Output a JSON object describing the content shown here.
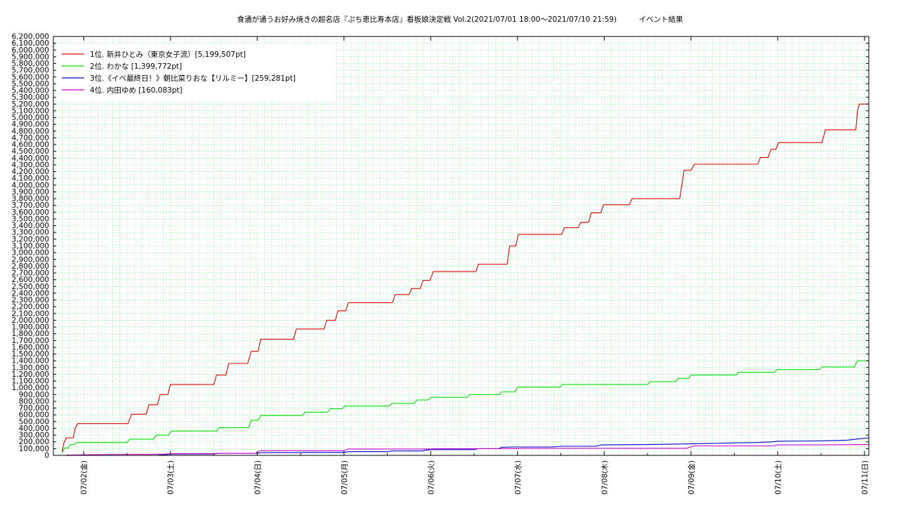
{
  "chart_data": {
    "type": "line",
    "title": "食通が通うお好み焼きの超名店『ぷち恵比寿本店』看板娘決定戦 Vol.2(2021/07/01 18:00〜2021/07/10 21:59)　　　イベント結果",
    "xlabel": "",
    "ylabel": "",
    "x_unit": "days since 07/01 00:00",
    "xlim": [
      0.65,
      10.05
    ],
    "ylim": [
      0,
      6200000
    ],
    "y_tick_step": 100000,
    "x_ticks": [
      {
        "x": 1,
        "label": "07/02(金)"
      },
      {
        "x": 2,
        "label": "07/03(土)"
      },
      {
        "x": 3,
        "label": "07/04(日)"
      },
      {
        "x": 4,
        "label": "07/05(月)"
      },
      {
        "x": 5,
        "label": "07/06(火)"
      },
      {
        "x": 6,
        "label": "07/07(水)"
      },
      {
        "x": 7,
        "label": "07/08(木)"
      },
      {
        "x": 8,
        "label": "07/09(金)"
      },
      {
        "x": 9,
        "label": "07/10(土)"
      },
      {
        "x": 10,
        "label": "07/11(日)"
      }
    ],
    "grid": true,
    "legend_position": "top-left",
    "series": [
      {
        "name": "1位. 新井ひとみ（東京女子流）[5,199,507pt]",
        "color": "#dd0000",
        "points": [
          [
            0.75,
            50000
          ],
          [
            0.77,
            180000
          ],
          [
            0.8,
            260000
          ],
          [
            0.88,
            260000
          ],
          [
            0.9,
            400000
          ],
          [
            0.93,
            470000
          ],
          [
            1.51,
            470000
          ],
          [
            1.55,
            610000
          ],
          [
            1.72,
            610000
          ],
          [
            1.75,
            750000
          ],
          [
            1.85,
            750000
          ],
          [
            1.88,
            900000
          ],
          [
            1.97,
            900000
          ],
          [
            2.0,
            1050000
          ],
          [
            2.5,
            1050000
          ],
          [
            2.53,
            1190000
          ],
          [
            2.64,
            1190000
          ],
          [
            2.67,
            1360000
          ],
          [
            2.89,
            1360000
          ],
          [
            2.93,
            1540000
          ],
          [
            3.01,
            1540000
          ],
          [
            3.04,
            1720000
          ],
          [
            3.42,
            1720000
          ],
          [
            3.45,
            1870000
          ],
          [
            3.77,
            1870000
          ],
          [
            3.8,
            2000000
          ],
          [
            3.9,
            2000000
          ],
          [
            3.93,
            2140000
          ],
          [
            4.02,
            2140000
          ],
          [
            4.05,
            2260000
          ],
          [
            4.56,
            2260000
          ],
          [
            4.59,
            2380000
          ],
          [
            4.75,
            2380000
          ],
          [
            4.78,
            2470000
          ],
          [
            4.88,
            2470000
          ],
          [
            4.91,
            2590000
          ],
          [
            4.99,
            2590000
          ],
          [
            5.03,
            2720000
          ],
          [
            5.52,
            2720000
          ],
          [
            5.55,
            2830000
          ],
          [
            5.88,
            2830000
          ],
          [
            5.91,
            3100000
          ],
          [
            5.98,
            3100000
          ],
          [
            6.01,
            3270000
          ],
          [
            6.51,
            3270000
          ],
          [
            6.54,
            3370000
          ],
          [
            6.7,
            3370000
          ],
          [
            6.73,
            3450000
          ],
          [
            6.82,
            3450000
          ],
          [
            6.85,
            3590000
          ],
          [
            6.96,
            3590000
          ],
          [
            6.99,
            3710000
          ],
          [
            7.29,
            3710000
          ],
          [
            7.32,
            3800000
          ],
          [
            7.87,
            3800000
          ],
          [
            7.9,
            4050000
          ],
          [
            7.92,
            4220000
          ],
          [
            8.0,
            4220000
          ],
          [
            8.04,
            4310000
          ],
          [
            8.77,
            4310000
          ],
          [
            8.8,
            4410000
          ],
          [
            8.89,
            4410000
          ],
          [
            8.92,
            4530000
          ],
          [
            8.98,
            4530000
          ],
          [
            9.01,
            4630000
          ],
          [
            9.51,
            4630000
          ],
          [
            9.55,
            4820000
          ],
          [
            9.9,
            4820000
          ],
          [
            9.92,
            5100000
          ],
          [
            9.94,
            5199507
          ],
          [
            10.05,
            5199507
          ]
        ]
      },
      {
        "name": "2位. わかな [1,399,772pt]",
        "color": "#00dd00",
        "points": [
          [
            0.75,
            40000
          ],
          [
            0.78,
            110000
          ],
          [
            0.82,
            110000
          ],
          [
            0.85,
            160000
          ],
          [
            0.89,
            160000
          ],
          [
            0.92,
            190000
          ],
          [
            1.5,
            190000
          ],
          [
            1.53,
            240000
          ],
          [
            1.8,
            240000
          ],
          [
            1.84,
            300000
          ],
          [
            1.98,
            300000
          ],
          [
            2.01,
            360000
          ],
          [
            2.53,
            360000
          ],
          [
            2.56,
            410000
          ],
          [
            2.9,
            410000
          ],
          [
            2.93,
            520000
          ],
          [
            3.01,
            520000
          ],
          [
            3.04,
            590000
          ],
          [
            3.52,
            590000
          ],
          [
            3.55,
            640000
          ],
          [
            3.81,
            640000
          ],
          [
            3.84,
            690000
          ],
          [
            3.98,
            690000
          ],
          [
            4.01,
            730000
          ],
          [
            4.52,
            730000
          ],
          [
            4.55,
            770000
          ],
          [
            4.81,
            770000
          ],
          [
            4.84,
            820000
          ],
          [
            4.97,
            820000
          ],
          [
            5.0,
            860000
          ],
          [
            5.42,
            860000
          ],
          [
            5.45,
            900000
          ],
          [
            5.79,
            900000
          ],
          [
            5.82,
            940000
          ],
          [
            5.97,
            940000
          ],
          [
            6.0,
            1010000
          ],
          [
            6.49,
            1010000
          ],
          [
            6.52,
            1050000
          ],
          [
            7.5,
            1050000
          ],
          [
            7.53,
            1090000
          ],
          [
            7.82,
            1090000
          ],
          [
            7.85,
            1140000
          ],
          [
            7.97,
            1140000
          ],
          [
            8.0,
            1190000
          ],
          [
            8.52,
            1190000
          ],
          [
            8.55,
            1230000
          ],
          [
            8.96,
            1230000
          ],
          [
            8.99,
            1270000
          ],
          [
            9.48,
            1270000
          ],
          [
            9.51,
            1310000
          ],
          [
            9.88,
            1310000
          ],
          [
            9.92,
            1399772
          ],
          [
            10.05,
            1399772
          ]
        ]
      },
      {
        "name": "3位.《イベ最終日！》朝比菜りおな【リルミー】[259,281pt]",
        "color": "#0000cc",
        "points": [
          [
            1.7,
            0
          ],
          [
            1.85,
            0
          ],
          [
            1.88,
            5000
          ],
          [
            1.95,
            10000
          ],
          [
            2.0,
            20000
          ],
          [
            2.5,
            20000
          ],
          [
            2.55,
            30000
          ],
          [
            3.0,
            30000
          ],
          [
            3.05,
            40000
          ],
          [
            3.5,
            40000
          ],
          [
            3.55,
            45000
          ],
          [
            4.0,
            45000
          ],
          [
            4.05,
            55000
          ],
          [
            4.5,
            55000
          ],
          [
            4.55,
            65000
          ],
          [
            4.9,
            65000
          ],
          [
            4.95,
            80000
          ],
          [
            5.0,
            85000
          ],
          [
            5.5,
            85000
          ],
          [
            5.55,
            100000
          ],
          [
            5.78,
            100000
          ],
          [
            5.82,
            120000
          ],
          [
            6.0,
            125000
          ],
          [
            6.4,
            125000
          ],
          [
            6.5,
            135000
          ],
          [
            6.9,
            135000
          ],
          [
            6.97,
            155000
          ],
          [
            7.5,
            160000
          ],
          [
            8.0,
            170000
          ],
          [
            8.5,
            185000
          ],
          [
            8.75,
            190000
          ],
          [
            8.95,
            200000
          ],
          [
            9.0,
            210000
          ],
          [
            9.5,
            215000
          ],
          [
            9.8,
            225000
          ],
          [
            9.9,
            240000
          ],
          [
            10.05,
            259281
          ]
        ]
      },
      {
        "name": "4位. 内田ゆめ [160,083pt]",
        "color": "#cc00cc",
        "points": [
          [
            0.8,
            5000
          ],
          [
            1.1,
            10000
          ],
          [
            1.5,
            15000
          ],
          [
            1.8,
            15000
          ],
          [
            1.95,
            20000
          ],
          [
            2.0,
            25000
          ],
          [
            2.5,
            25000
          ],
          [
            2.55,
            30000
          ],
          [
            2.98,
            30000
          ],
          [
            3.03,
            70000
          ],
          [
            3.5,
            70000
          ],
          [
            4.0,
            70000
          ],
          [
            4.05,
            95000
          ],
          [
            4.5,
            95000
          ],
          [
            5.0,
            95000
          ],
          [
            5.05,
            100000
          ],
          [
            5.5,
            100000
          ],
          [
            6.0,
            100000
          ],
          [
            6.05,
            105000
          ],
          [
            6.5,
            105000
          ],
          [
            7.0,
            105000
          ],
          [
            7.5,
            105000
          ],
          [
            7.95,
            105000
          ],
          [
            8.03,
            140000
          ],
          [
            8.5,
            140000
          ],
          [
            8.95,
            140000
          ],
          [
            9.0,
            155000
          ],
          [
            9.5,
            155000
          ],
          [
            10.05,
            160083
          ]
        ]
      }
    ]
  }
}
